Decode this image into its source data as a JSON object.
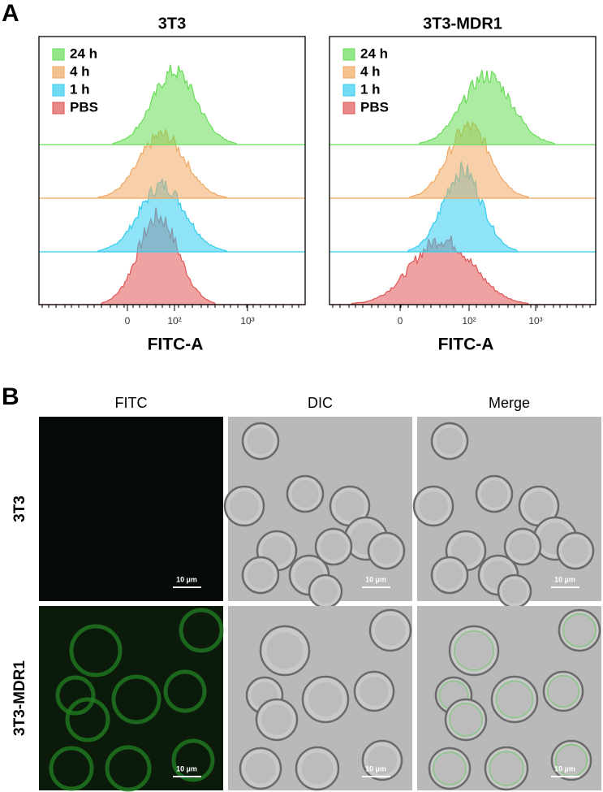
{
  "panel_a": {
    "label": "A",
    "plots": [
      {
        "title": "3T3",
        "xlabel": "FITC-A",
        "xticks": [
          "0",
          "10²",
          "10³"
        ],
        "legend": [
          {
            "name": "24 h",
            "color": "#66dd55"
          },
          {
            "name": "4 h",
            "color": "#f0a860"
          },
          {
            "name": "1 h",
            "color": "#33ccee"
          },
          {
            "name": "PBS",
            "color": "#e05555"
          }
        ]
      },
      {
        "title": "3T3-MDR1",
        "xlabel": "FITC-A",
        "xticks": [
          "0",
          "10²",
          "10³"
        ],
        "legend": [
          {
            "name": "24 h",
            "color": "#66dd55"
          },
          {
            "name": "4 h",
            "color": "#f0a860"
          },
          {
            "name": "1 h",
            "color": "#33ccee"
          },
          {
            "name": "PBS",
            "color": "#e05555"
          }
        ]
      }
    ]
  },
  "panel_b": {
    "label": "B",
    "columns": [
      "FITC",
      "DIC",
      "Merge"
    ],
    "rows": [
      "3T3",
      "3T3-MDR1"
    ],
    "scale_bar": "10 µm"
  }
}
